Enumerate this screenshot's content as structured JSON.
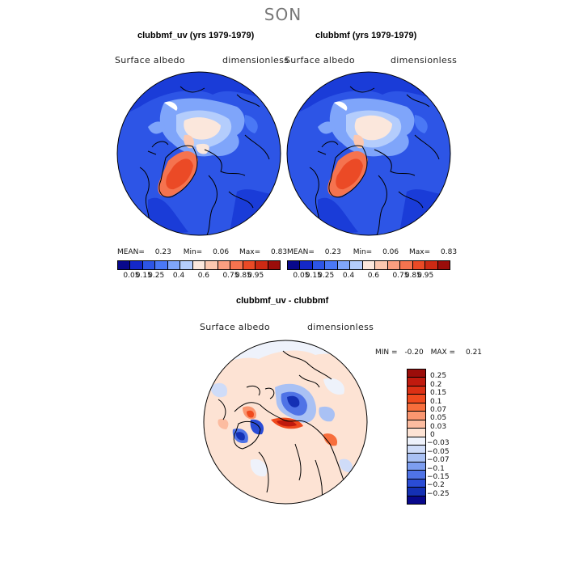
{
  "page": {
    "title": "SON"
  },
  "chart_data": [
    {
      "type": "heatmap",
      "projection": "north-polar-stereographic",
      "title": "clubbmf_uv (yrs 1979-1979)",
      "variable": "Surface albedo",
      "units": "dimensionless",
      "stats": {
        "mean_label": "MEAN=",
        "mean": "0.23",
        "min_label": "Min=",
        "min": "0.06",
        "max_label": "Max=",
        "max": "0.83"
      },
      "colorbar": {
        "ticks": [
          "0.05",
          "0.15",
          "0.25",
          "0.4",
          "0.6",
          "0.75",
          "0.85",
          "0.95"
        ],
        "colors": [
          "#08088c",
          "#1428c8",
          "#2d55e6",
          "#4a78f5",
          "#7fa5fa",
          "#b4cdfc",
          "#fbe7dc",
          "#fcc8b0",
          "#fa9e80",
          "#f5734f",
          "#eb4a26",
          "#cd2a14",
          "#9b0d0a"
        ]
      }
    },
    {
      "type": "heatmap",
      "projection": "north-polar-stereographic",
      "title": "clubbmf (yrs 1979-1979)",
      "variable": "Surface albedo",
      "units": "dimensionless",
      "stats": {
        "mean_label": "MEAN=",
        "mean": "0.23",
        "min_label": "Min=",
        "min": "0.06",
        "max_label": "Max=",
        "max": "0.83"
      },
      "colorbar": {
        "ticks": [
          "0.05",
          "0.15",
          "0.25",
          "0.4",
          "0.6",
          "0.75",
          "0.85",
          "0.95"
        ],
        "colors": [
          "#08088c",
          "#1428c8",
          "#2d55e6",
          "#4a78f5",
          "#7fa5fa",
          "#b4cdfc",
          "#fbe7dc",
          "#fcc8b0",
          "#fa9e80",
          "#f5734f",
          "#eb4a26",
          "#cd2a14",
          "#9b0d0a"
        ]
      }
    },
    {
      "type": "heatmap",
      "projection": "north-polar-stereographic",
      "title": "clubbmf_uv - clubbmf",
      "variable": "Surface albedo",
      "units": "dimensionless",
      "stats": {
        "min_label": "MIN =",
        "min": "-0.20",
        "max_label": "MAX =",
        "max": "0.21"
      },
      "colorbar": {
        "ticks": [
          "0.25",
          "0.2",
          "0.15",
          "0.1",
          "0.07",
          "0.05",
          "0.03",
          "0",
          "−0.03",
          "−0.05",
          "−0.07",
          "−0.1",
          "−0.15",
          "−0.2",
          "−0.25"
        ],
        "colors": [
          "#9b0d0a",
          "#c01a0e",
          "#dc3014",
          "#f04a1e",
          "#f76e3c",
          "#fa9670",
          "#fcbca0",
          "#fde3d4",
          "#eef2fb",
          "#cfdcf8",
          "#a9c1f4",
          "#7d9ef0",
          "#4f73e6",
          "#2a4cd6",
          "#1430b4",
          "#08088c"
        ]
      }
    }
  ]
}
